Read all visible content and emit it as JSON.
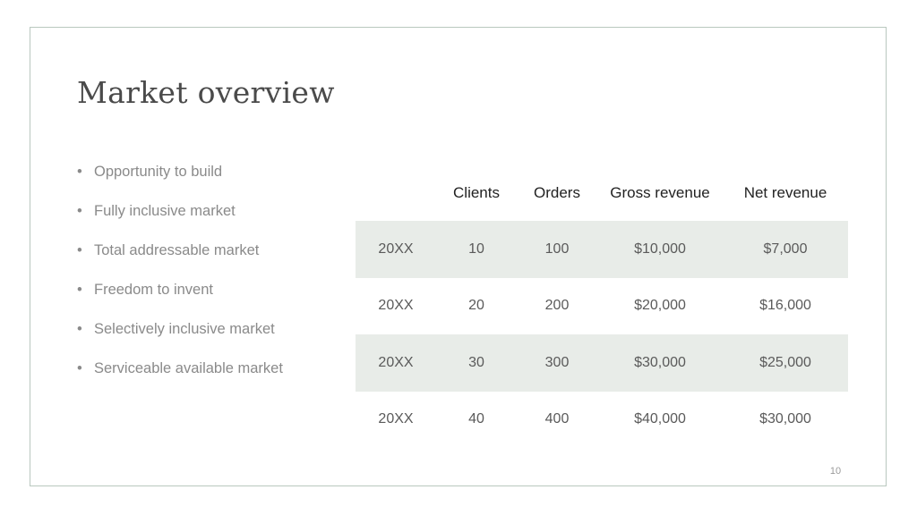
{
  "slide": {
    "title": "Market overview",
    "page_number": "10"
  },
  "bullets": [
    "Opportunity to build",
    "Fully inclusive market",
    "Total addressable market",
    "Freedom to invent",
    "Selectively inclusive market",
    "Serviceable available market"
  ],
  "table": {
    "headers": [
      "",
      "Clients",
      "Orders",
      "Gross revenue",
      "Net revenue"
    ],
    "rows": [
      [
        "20XX",
        "10",
        "100",
        "$10,000",
        "$7,000"
      ],
      [
        "20XX",
        "20",
        "200",
        "$20,000",
        "$16,000"
      ],
      [
        "20XX",
        "30",
        "300",
        "$30,000",
        "$25,000"
      ],
      [
        "20XX",
        "40",
        "400",
        "$40,000",
        "$30,000"
      ]
    ]
  },
  "colors": {
    "frame_border": "#b9c8bf",
    "row_shade": "#e8ece8",
    "title_text": "#4a4a4a",
    "bullet_text": "#8a8a8a"
  }
}
